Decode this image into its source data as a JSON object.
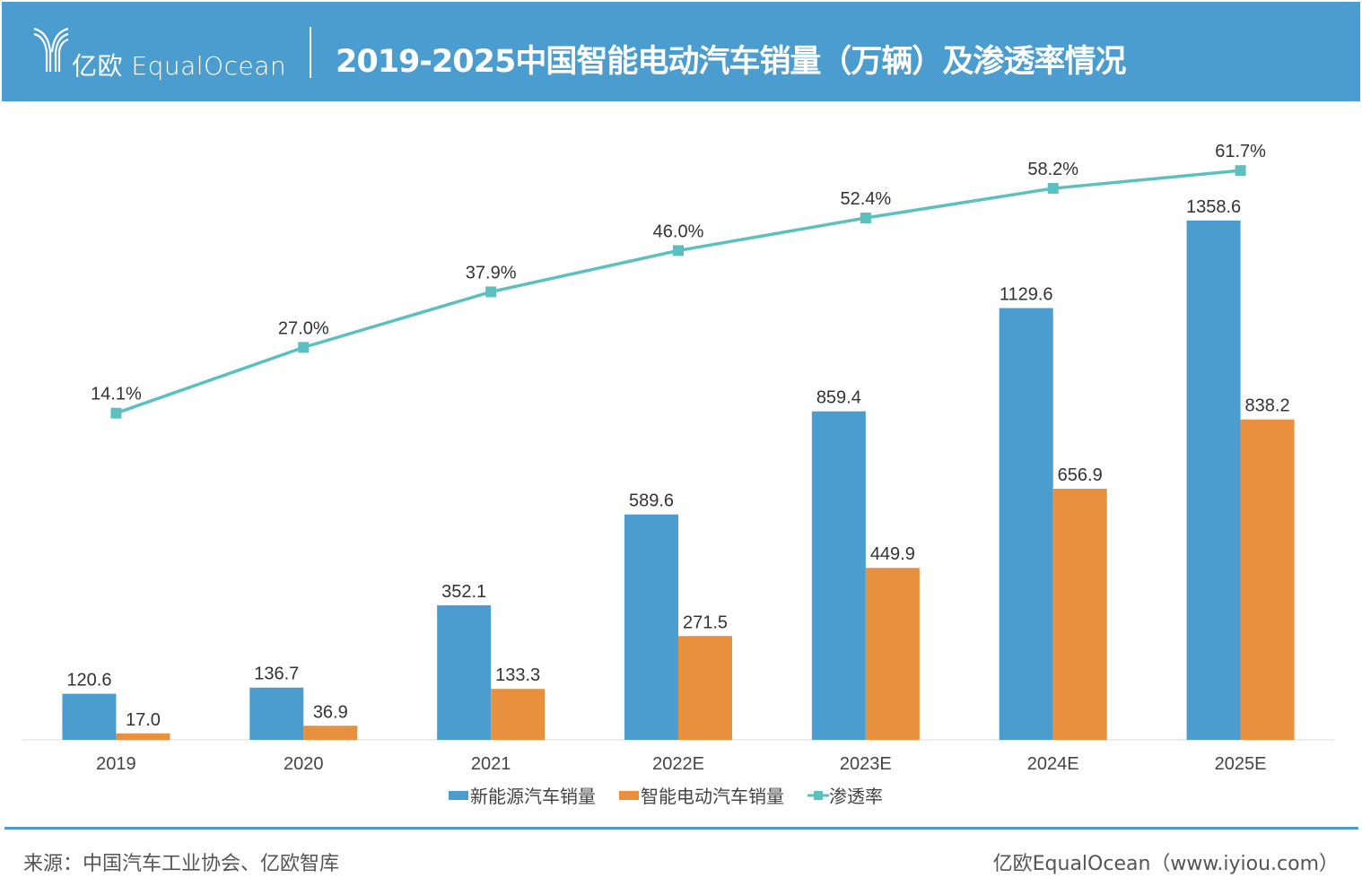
{
  "header": {
    "logo_text": "亿欧 EqualOcean",
    "title": "2019-2025中国智能电动汽车销量（万辆）及渗透率情况"
  },
  "footer": {
    "source": "来源：中国汽车工业协会、亿欧智库",
    "credit": "亿欧EqualOcean（www.iyiou.com）"
  },
  "chart_data": {
    "type": "bar+line",
    "title": "2019-2025中国智能电动汽车销量（万辆）及渗透率情况",
    "categories": [
      "2019",
      "2020",
      "2021",
      "2022E",
      "2023E",
      "2024E",
      "2025E"
    ],
    "series": [
      {
        "name": "新能源汽车销量",
        "type": "bar",
        "color": "#4b9ccf",
        "values": [
          120.6,
          136.7,
          352.1,
          589.6,
          859.4,
          1129.6,
          1358.6
        ],
        "labels": [
          "120.6",
          "136.7",
          "352.1",
          "589.6",
          "859.4",
          "1129.6",
          "1358.6"
        ]
      },
      {
        "name": "智能电动汽车销量",
        "type": "bar",
        "color": "#e8903e",
        "values": [
          17.0,
          36.9,
          133.3,
          271.5,
          449.9,
          656.9,
          838.2
        ],
        "labels": [
          "17.0",
          "36.9",
          "133.3",
          "271.5",
          "449.9",
          "656.9",
          "838.2"
        ]
      },
      {
        "name": "渗透率",
        "type": "line",
        "color": "#5cc0c0",
        "values": [
          14.1,
          27.0,
          37.9,
          46.0,
          52.4,
          58.2,
          61.7
        ],
        "labels": [
          "14.1%",
          "27.0%",
          "37.9%",
          "46.0%",
          "52.4%",
          "58.2%",
          "61.7%"
        ]
      }
    ],
    "ylim": [
      0,
      1600
    ],
    "y2lim": [
      -50,
      70
    ],
    "grid": false,
    "legend": "bottom"
  }
}
